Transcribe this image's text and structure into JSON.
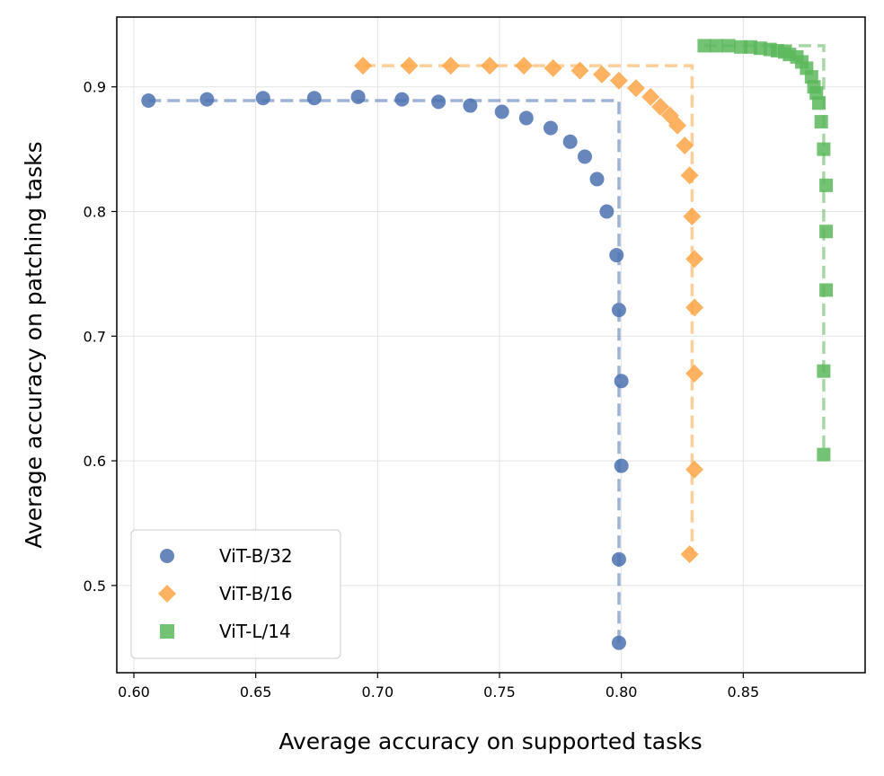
{
  "chart_data": {
    "type": "scatter",
    "xlabel": "Average accuracy on supported tasks",
    "ylabel": "Average accuracy on patching tasks",
    "xlim": [
      0.593,
      0.9
    ],
    "ylim": [
      0.43,
      0.956
    ],
    "xticks": [
      "0.60",
      "0.65",
      "0.70",
      "0.75",
      "0.80",
      "0.85"
    ],
    "yticks": [
      "0.5",
      "0.6",
      "0.7",
      "0.8",
      "0.9"
    ],
    "grid": true,
    "legend_position": "bottom-left",
    "series": [
      {
        "name": "ViT-B/32",
        "marker": "circle",
        "color": "#4c72b0",
        "points": [
          [
            0.606,
            0.889
          ],
          [
            0.63,
            0.89
          ],
          [
            0.653,
            0.891
          ],
          [
            0.674,
            0.891
          ],
          [
            0.692,
            0.892
          ],
          [
            0.71,
            0.89
          ],
          [
            0.725,
            0.888
          ],
          [
            0.738,
            0.885
          ],
          [
            0.751,
            0.88
          ],
          [
            0.761,
            0.875
          ],
          [
            0.771,
            0.867
          ],
          [
            0.779,
            0.856
          ],
          [
            0.785,
            0.844
          ],
          [
            0.79,
            0.826
          ],
          [
            0.794,
            0.8
          ],
          [
            0.798,
            0.765
          ],
          [
            0.799,
            0.721
          ],
          [
            0.8,
            0.664
          ],
          [
            0.8,
            0.596
          ],
          [
            0.799,
            0.521
          ],
          [
            0.799,
            0.454
          ]
        ],
        "frontier": [
          [
            0.606,
            0.889
          ],
          [
            0.799,
            0.889
          ],
          [
            0.799,
            0.454
          ]
        ]
      },
      {
        "name": "ViT-B/16",
        "marker": "diamond",
        "color": "#ffa646",
        "points": [
          [
            0.694,
            0.917
          ],
          [
            0.713,
            0.917
          ],
          [
            0.73,
            0.917
          ],
          [
            0.746,
            0.917
          ],
          [
            0.76,
            0.917
          ],
          [
            0.772,
            0.915
          ],
          [
            0.783,
            0.913
          ],
          [
            0.792,
            0.91
          ],
          [
            0.799,
            0.905
          ],
          [
            0.806,
            0.899
          ],
          [
            0.812,
            0.892
          ],
          [
            0.816,
            0.884
          ],
          [
            0.82,
            0.877
          ],
          [
            0.823,
            0.869
          ],
          [
            0.826,
            0.853
          ],
          [
            0.828,
            0.829
          ],
          [
            0.829,
            0.796
          ],
          [
            0.83,
            0.762
          ],
          [
            0.83,
            0.723
          ],
          [
            0.83,
            0.67
          ],
          [
            0.83,
            0.593
          ],
          [
            0.828,
            0.525
          ]
        ],
        "frontier": [
          [
            0.694,
            0.917
          ],
          [
            0.829,
            0.917
          ],
          [
            0.829,
            0.525
          ]
        ]
      },
      {
        "name": "ViT-L/14",
        "marker": "square",
        "color": "#5cb85c",
        "points": [
          [
            0.834,
            0.933
          ],
          [
            0.839,
            0.933
          ],
          [
            0.844,
            0.933
          ],
          [
            0.849,
            0.932
          ],
          [
            0.853,
            0.932
          ],
          [
            0.857,
            0.931
          ],
          [
            0.861,
            0.93
          ],
          [
            0.864,
            0.929
          ],
          [
            0.867,
            0.928
          ],
          [
            0.869,
            0.926
          ],
          [
            0.872,
            0.924
          ],
          [
            0.874,
            0.92
          ],
          [
            0.876,
            0.915
          ],
          [
            0.878,
            0.908
          ],
          [
            0.879,
            0.9
          ],
          [
            0.88,
            0.895
          ],
          [
            0.881,
            0.887
          ],
          [
            0.882,
            0.872
          ],
          [
            0.883,
            0.85
          ],
          [
            0.884,
            0.821
          ],
          [
            0.884,
            0.784
          ],
          [
            0.884,
            0.737
          ],
          [
            0.883,
            0.672
          ],
          [
            0.883,
            0.605
          ]
        ],
        "frontier": [
          [
            0.834,
            0.933
          ],
          [
            0.883,
            0.933
          ],
          [
            0.883,
            0.605
          ]
        ]
      }
    ]
  }
}
